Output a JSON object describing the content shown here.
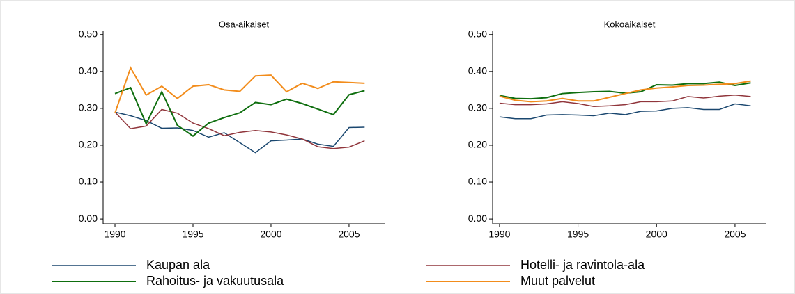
{
  "chart_data": [
    {
      "type": "line",
      "title": "Osa-aikaiset",
      "x": [
        1990,
        1991,
        1992,
        1993,
        1994,
        1995,
        1996,
        1997,
        1998,
        1999,
        2000,
        2001,
        2002,
        2003,
        2004,
        2005,
        2006
      ],
      "xlim": [
        1989.24,
        2007.28
      ],
      "xticks": [
        1990,
        1995,
        2000,
        2005
      ],
      "ylim": [
        -0.013,
        0.509
      ],
      "yticks": [
        {
          "value": 0,
          "label": "0.00"
        },
        {
          "value": 0.1,
          "label": "0.10"
        },
        {
          "value": 0.2,
          "label": "0.20"
        },
        {
          "value": 0.3,
          "label": "0.30"
        },
        {
          "value": 0.4,
          "label": "0.40"
        },
        {
          "value": 0.5,
          "label": "0.50"
        }
      ],
      "series": [
        {
          "name": "Kaupan ala",
          "color": "#1a476f",
          "values": [
            0.29,
            0.28,
            0.267,
            0.246,
            0.247,
            0.24,
            0.222,
            0.234,
            0.207,
            0.18,
            0.212,
            0.214,
            0.217,
            0.203,
            0.197,
            0.248,
            0.249
          ]
        },
        {
          "name": "Hotelli- ja ravintola-ala",
          "color": "#90353b",
          "values": [
            0.29,
            0.245,
            0.252,
            0.297,
            0.287,
            0.26,
            0.245,
            0.226,
            0.235,
            0.24,
            0.236,
            0.228,
            0.217,
            0.196,
            0.191,
            0.195,
            0.212
          ]
        },
        {
          "name": "Rahoitus- ja vakuutusala",
          "color": "#0e6e0e",
          "values": [
            0.34,
            0.356,
            0.258,
            0.345,
            0.254,
            0.225,
            0.26,
            0.275,
            0.288,
            0.316,
            0.31,
            0.325,
            0.313,
            0.298,
            0.283,
            0.337,
            0.348
          ]
        },
        {
          "name": "Muut palvelut",
          "color": "#f28c1b",
          "values": [
            0.287,
            0.41,
            0.336,
            0.36,
            0.327,
            0.36,
            0.364,
            0.35,
            0.346,
            0.388,
            0.39,
            0.345,
            0.368,
            0.354,
            0.372,
            0.37,
            0.368
          ]
        }
      ]
    },
    {
      "type": "line",
      "title": "Kokoaikaiset",
      "x": [
        1990,
        1991,
        1992,
        1993,
        1994,
        1995,
        1996,
        1997,
        1998,
        1999,
        2000,
        2001,
        2002,
        2003,
        2004,
        2005,
        2006
      ],
      "xlim": [
        1989.56,
        2007.0
      ],
      "xticks": [
        1990,
        1995,
        2000,
        2005
      ],
      "ylim": [
        -0.013,
        0.509
      ],
      "yticks": [
        {
          "value": 0,
          "label": "0.00"
        },
        {
          "value": 0.1,
          "label": "0.10"
        },
        {
          "value": 0.2,
          "label": "0.20"
        },
        {
          "value": 0.3,
          "label": "0.30"
        },
        {
          "value": 0.4,
          "label": "0.40"
        },
        {
          "value": 0.5,
          "label": "0.50"
        }
      ],
      "series": [
        {
          "color": "#1a476f",
          "values": [
            0.277,
            0.272,
            0.272,
            0.282,
            0.283,
            0.282,
            0.28,
            0.287,
            0.283,
            0.292,
            0.293,
            0.3,
            0.302,
            0.297,
            0.297,
            0.312,
            0.307
          ]
        },
        {
          "color": "#90353b",
          "values": [
            0.314,
            0.31,
            0.31,
            0.312,
            0.318,
            0.313,
            0.305,
            0.307,
            0.31,
            0.318,
            0.318,
            0.32,
            0.332,
            0.328,
            0.333,
            0.336,
            0.332
          ]
        },
        {
          "color": "#0e6e0e",
          "values": [
            0.335,
            0.327,
            0.326,
            0.329,
            0.34,
            0.343,
            0.345,
            0.346,
            0.341,
            0.345,
            0.364,
            0.363,
            0.367,
            0.367,
            0.371,
            0.362,
            0.369
          ]
        },
        {
          "color": "#f28c1b",
          "values": [
            0.333,
            0.322,
            0.318,
            0.32,
            0.327,
            0.32,
            0.32,
            0.33,
            0.34,
            0.35,
            0.355,
            0.358,
            0.362,
            0.363,
            0.365,
            0.367,
            0.374
          ]
        }
      ]
    }
  ]
}
